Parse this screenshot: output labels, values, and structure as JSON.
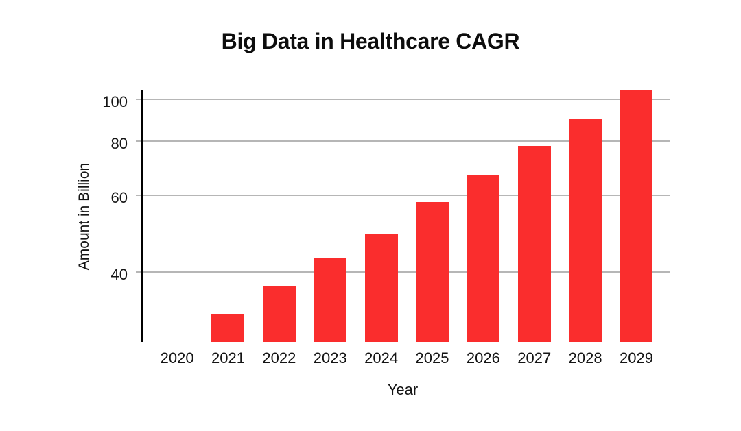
{
  "page": {
    "background": "#ffffff"
  },
  "chart_data": {
    "type": "bar",
    "title": "Big Data in Healthcare CAGR",
    "xlabel": "Year",
    "ylabel": "Amount in Billion",
    "categories": [
      "2020",
      "2021",
      "2022",
      "2023",
      "2024",
      "2025",
      "2026",
      "2027",
      "2028",
      "2029"
    ],
    "values": [
      0,
      32,
      37,
      43,
      49,
      58,
      67,
      78,
      90,
      105
    ],
    "yticks": [
      40,
      60,
      80,
      100
    ],
    "yaxis_scale": "log",
    "ylim": [
      28,
      105
    ],
    "grid": true,
    "legend": false,
    "bar_color": "#fa2d2d",
    "gridline_color": "#b6b6b6",
    "axis_color": "#000000",
    "text_color": "#141414"
  }
}
